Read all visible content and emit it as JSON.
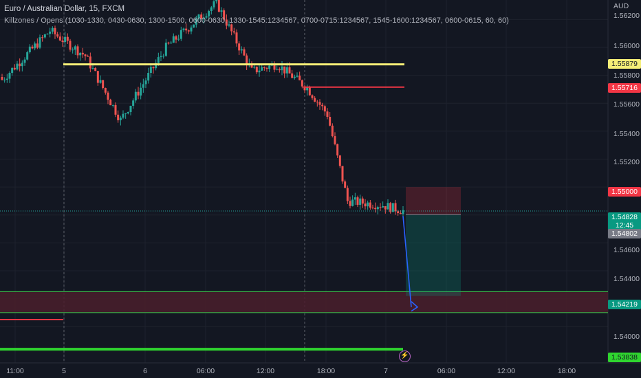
{
  "legend": {
    "title": "Euro / Australian Dollar, 15, FXCM",
    "indicator": "Killzones / Opens (1030-1330, 0430-0630, 1300-1500, 0600-0630, 1330-1545:1234567, 0700-0715:1234567, 1545-1600:1234567, 0600-0615, 60, 60)"
  },
  "price_axis": {
    "currency": "AUD",
    "ticks": [
      "1.56200",
      "1.56000",
      "1.55800",
      "1.55600",
      "1.55400",
      "1.55200",
      "1.54600",
      "1.54400",
      "1.54000"
    ]
  },
  "tags": {
    "yellow_level": "1.55879",
    "red_level": "1.55716",
    "stop": "1.55000",
    "last_price": "1.54828",
    "countdown": "12:45",
    "entry": "1.54802",
    "target": "1.54219",
    "bottom_green": "1.53838"
  },
  "time_axis": {
    "ticks": [
      "11:00",
      "5",
      "6",
      "06:00",
      "12:00",
      "18:00",
      "7",
      "06:00",
      "12:00",
      "18:00"
    ]
  },
  "icons": {
    "alert": "lightning-icon"
  },
  "colors": {
    "background": "#131722",
    "up": "#26a69a",
    "down": "#ef5350",
    "yellow": "#f5ee77",
    "red_line": "#f23645",
    "green_line": "#2fd52f",
    "arrow": "#2962ff"
  },
  "chart_data": {
    "type": "candlestick",
    "title": "Euro / Australian Dollar, 15, FXCM",
    "y_unit": "AUD",
    "ylim": [
      1.5374,
      1.5634
    ],
    "x_range": [
      "11:00",
      "18:00"
    ],
    "overlays": {
      "yellow_level": 1.55879,
      "red_level": 1.55716,
      "bottom_green_level": 1.53838,
      "demand_zone": [
        1.541,
        1.5425
      ],
      "position": {
        "stop": 1.55,
        "entry": 1.54802,
        "target": 1.54219
      },
      "last_price": 1.54828
    },
    "segments": [
      {
        "from": 1.5575,
        "to": 1.5612,
        "n": 20
      },
      {
        "from": 1.5612,
        "to": 1.5594,
        "n": 14
      },
      {
        "from": 1.5594,
        "to": 1.5548,
        "n": 14
      },
      {
        "from": 1.5548,
        "to": 1.56,
        "n": 18
      },
      {
        "from": 1.56,
        "to": 1.5632,
        "n": 20
      },
      {
        "from": 1.5632,
        "to": 1.5583,
        "n": 14
      },
      {
        "from": 1.5583,
        "to": 1.5588,
        "n": 10
      },
      {
        "from": 1.5588,
        "to": 1.5571,
        "n": 12
      },
      {
        "from": 1.5571,
        "to": 1.5552,
        "n": 8
      },
      {
        "from": 1.5552,
        "to": 1.549,
        "n": 8
      },
      {
        "from": 1.549,
        "to": 1.5487,
        "n": 14
      },
      {
        "from": 1.5487,
        "to": 1.5483,
        "n": 8
      }
    ]
  }
}
